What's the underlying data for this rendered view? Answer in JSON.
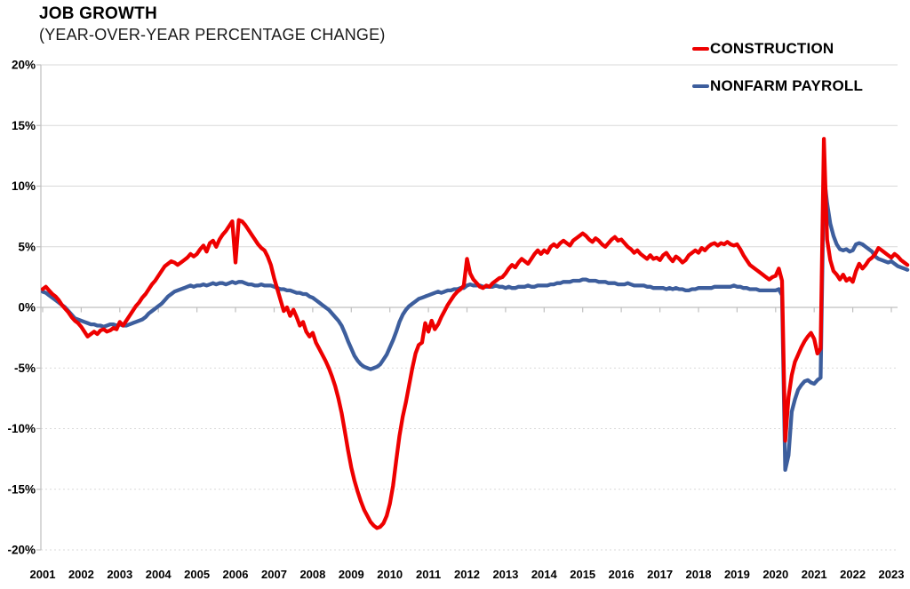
{
  "chart_data": {
    "type": "line",
    "title": "JOB GROWTH",
    "subtitle": "(YEAR-OVER-YEAR PERCENTAGE CHANGE)",
    "x_axis": {
      "labels": [
        "2001",
        "2002",
        "2003",
        "2004",
        "2005",
        "2006",
        "2007",
        "2008",
        "2009",
        "2010",
        "2011",
        "2012",
        "2013",
        "2014",
        "2015",
        "2016",
        "2017",
        "2018",
        "2019",
        "2020",
        "2021",
        "2022",
        "2023"
      ],
      "start_year": 2001,
      "points_per_year": 12
    },
    "y_axis": {
      "min": -20,
      "max": 20,
      "step": 5,
      "tick_labels": [
        "20%",
        "15%",
        "10%",
        "5%",
        "0%",
        "-5%",
        "-10%",
        "-15%",
        "-20%"
      ]
    },
    "grid": {
      "color": "#D9D9D9",
      "axis_color": "#BFBFBF",
      "positive_style": "solid",
      "negative_style": "dotted",
      "legend_position": "top-right"
    },
    "series": [
      {
        "name": "CONSTRUCTION",
        "color": "#EE0000",
        "line_width": 4.3,
        "values": [
          1.5,
          1.7,
          1.4,
          1.1,
          0.9,
          0.6,
          0.2,
          -0.1,
          -0.4,
          -0.8,
          -1.1,
          -1.3,
          -1.6,
          -2.0,
          -2.4,
          -2.2,
          -2.0,
          -2.2,
          -1.9,
          -1.8,
          -2.0,
          -1.9,
          -1.7,
          -1.8,
          -1.2,
          -1.5,
          -1.1,
          -0.7,
          -0.3,
          0.1,
          0.4,
          0.8,
          1.1,
          1.5,
          1.9,
          2.2,
          2.6,
          3.0,
          3.4,
          3.6,
          3.8,
          3.7,
          3.5,
          3.7,
          3.9,
          4.1,
          4.4,
          4.2,
          4.4,
          4.8,
          5.1,
          4.6,
          5.3,
          5.5,
          5.0,
          5.6,
          6.0,
          6.3,
          6.7,
          7.1,
          3.7,
          7.2,
          7.1,
          6.8,
          6.4,
          6.0,
          5.6,
          5.2,
          4.9,
          4.7,
          4.2,
          3.5,
          2.4,
          1.5,
          0.6,
          -0.3,
          0.0,
          -0.7,
          -0.2,
          -0.8,
          -1.5,
          -1.2,
          -2.0,
          -2.4,
          -2.1,
          -2.9,
          -3.4,
          -3.9,
          -4.4,
          -5.0,
          -5.7,
          -6.5,
          -7.5,
          -8.7,
          -10.2,
          -11.8,
          -13.2,
          -14.3,
          -15.2,
          -16.0,
          -16.7,
          -17.2,
          -17.7,
          -18.0,
          -18.2,
          -18.1,
          -17.8,
          -17.2,
          -16.2,
          -14.7,
          -12.6,
          -10.6,
          -9.0,
          -7.8,
          -6.4,
          -5.0,
          -3.8,
          -3.1,
          -2.9,
          -1.3,
          -2.0,
          -1.1,
          -1.8,
          -1.4,
          -0.8,
          -0.3,
          0.2,
          0.6,
          1.0,
          1.3,
          1.5,
          1.8,
          4.0,
          2.8,
          2.3,
          2.0,
          1.7,
          1.6,
          1.8,
          1.7,
          2.0,
          2.2,
          2.4,
          2.5,
          2.8,
          3.2,
          3.5,
          3.3,
          3.7,
          4.0,
          3.8,
          3.6,
          4.0,
          4.4,
          4.7,
          4.4,
          4.7,
          4.5,
          5.0,
          5.2,
          5.0,
          5.3,
          5.5,
          5.3,
          5.1,
          5.5,
          5.7,
          5.9,
          6.1,
          5.9,
          5.6,
          5.4,
          5.7,
          5.5,
          5.2,
          5.0,
          5.3,
          5.6,
          5.8,
          5.5,
          5.6,
          5.3,
          5.0,
          4.8,
          4.5,
          4.7,
          4.4,
          4.2,
          4.0,
          4.3,
          4.0,
          4.1,
          3.9,
          4.3,
          4.5,
          4.1,
          3.8,
          4.2,
          4.0,
          3.7,
          3.9,
          4.3,
          4.5,
          4.7,
          4.5,
          4.9,
          4.7,
          5.0,
          5.2,
          5.3,
          5.1,
          5.3,
          5.2,
          5.4,
          5.2,
          5.1,
          5.2,
          4.8,
          4.3,
          3.9,
          3.5,
          3.3,
          3.1,
          2.9,
          2.7,
          2.5,
          2.3,
          2.5,
          2.6,
          3.2,
          2.2,
          -11.0,
          -7.4,
          -5.6,
          -4.5,
          -3.9,
          -3.3,
          -2.8,
          -2.4,
          -2.1,
          -2.6,
          -3.8,
          -3.4,
          13.9,
          5.6,
          3.9,
          3.0,
          2.7,
          2.3,
          2.7,
          2.2,
          2.4,
          2.1,
          3.0,
          3.6,
          3.2,
          3.5,
          3.9,
          4.1,
          4.4,
          4.9,
          4.7,
          4.5,
          4.3,
          4.1,
          4.4,
          4.2,
          3.9,
          3.7,
          3.5
        ]
      },
      {
        "name": "NONFARM PAYROLL",
        "color": "#3D5E9D",
        "line_width": 4.3,
        "values": [
          1.3,
          1.2,
          1.0,
          0.8,
          0.6,
          0.4,
          0.2,
          0.0,
          -0.3,
          -0.6,
          -0.9,
          -1.0,
          -1.1,
          -1.2,
          -1.3,
          -1.4,
          -1.4,
          -1.5,
          -1.5,
          -1.6,
          -1.5,
          -1.4,
          -1.4,
          -1.5,
          -1.4,
          -1.5,
          -1.5,
          -1.4,
          -1.3,
          -1.2,
          -1.1,
          -1.0,
          -0.8,
          -0.5,
          -0.3,
          -0.1,
          0.1,
          0.3,
          0.6,
          0.9,
          1.1,
          1.3,
          1.4,
          1.5,
          1.6,
          1.7,
          1.8,
          1.7,
          1.8,
          1.8,
          1.9,
          1.8,
          1.9,
          2.0,
          1.9,
          2.0,
          2.0,
          1.9,
          2.0,
          2.1,
          2.0,
          2.1,
          2.1,
          2.0,
          1.9,
          1.9,
          1.8,
          1.8,
          1.9,
          1.8,
          1.8,
          1.8,
          1.7,
          1.6,
          1.5,
          1.5,
          1.4,
          1.4,
          1.3,
          1.2,
          1.2,
          1.1,
          1.1,
          0.9,
          0.8,
          0.6,
          0.4,
          0.2,
          0.0,
          -0.2,
          -0.5,
          -0.8,
          -1.1,
          -1.5,
          -2.1,
          -2.8,
          -3.4,
          -4.0,
          -4.4,
          -4.7,
          -4.9,
          -5.0,
          -5.1,
          -5.0,
          -4.9,
          -4.7,
          -4.3,
          -3.9,
          -3.3,
          -2.7,
          -2.0,
          -1.2,
          -0.6,
          -0.2,
          0.1,
          0.3,
          0.5,
          0.7,
          0.8,
          0.9,
          1.0,
          1.1,
          1.2,
          1.3,
          1.2,
          1.3,
          1.4,
          1.4,
          1.5,
          1.5,
          1.6,
          1.6,
          1.8,
          1.9,
          1.8,
          1.8,
          1.8,
          1.7,
          1.7,
          1.7,
          1.7,
          1.8,
          1.7,
          1.7,
          1.6,
          1.7,
          1.6,
          1.6,
          1.7,
          1.7,
          1.7,
          1.8,
          1.7,
          1.7,
          1.8,
          1.8,
          1.8,
          1.8,
          1.9,
          1.9,
          2.0,
          2.0,
          2.1,
          2.1,
          2.1,
          2.2,
          2.2,
          2.2,
          2.3,
          2.3,
          2.2,
          2.2,
          2.2,
          2.1,
          2.1,
          2.1,
          2.0,
          2.0,
          2.0,
          1.9,
          1.9,
          1.9,
          2.0,
          1.9,
          1.8,
          1.8,
          1.8,
          1.8,
          1.7,
          1.7,
          1.6,
          1.6,
          1.6,
          1.6,
          1.5,
          1.6,
          1.5,
          1.6,
          1.5,
          1.5,
          1.4,
          1.4,
          1.5,
          1.5,
          1.6,
          1.6,
          1.6,
          1.6,
          1.6,
          1.7,
          1.7,
          1.7,
          1.7,
          1.7,
          1.7,
          1.8,
          1.7,
          1.7,
          1.6,
          1.6,
          1.5,
          1.5,
          1.5,
          1.4,
          1.4,
          1.4,
          1.4,
          1.4,
          1.4,
          1.5,
          1.0,
          -13.4,
          -12.2,
          -8.6,
          -7.6,
          -6.8,
          -6.4,
          -6.1,
          -6.0,
          -6.2,
          -6.3,
          -6.0,
          -5.8,
          10.9,
          8.6,
          6.9,
          5.9,
          5.2,
          4.8,
          4.7,
          4.8,
          4.6,
          4.7,
          5.2,
          5.3,
          5.2,
          5.0,
          4.8,
          4.6,
          4.2,
          4.0,
          3.9,
          3.8,
          3.7,
          3.8,
          3.6,
          3.4,
          3.3,
          3.2,
          3.1
        ]
      }
    ]
  }
}
